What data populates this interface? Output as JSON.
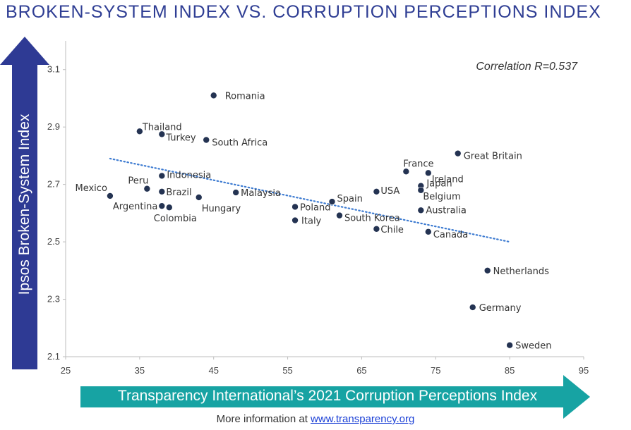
{
  "title": "BROKEN-SYSTEM INDEX VS. CORRUPTION PERCEPTIONS INDEX",
  "footer": {
    "prefix": "More information at ",
    "link_text": "www.transparency.org"
  },
  "colors": {
    "title": "#2f3e94",
    "y_arrow": "#2e3a94",
    "x_arrow": "#17a3a3",
    "point": "#243352",
    "trendline": "#3d7bd1"
  },
  "chart_data": {
    "type": "scatter",
    "title": "BROKEN-SYSTEM INDEX VS. CORRUPTION PERCEPTIONS INDEX",
    "xlabel": "Transparency International’s 2021 Corruption Perceptions Index",
    "ylabel": "Ipsos Broken-System Index",
    "xlim": [
      25,
      95
    ],
    "ylim": [
      2.1,
      3.2
    ],
    "x_ticks": [
      "25",
      "35",
      "45",
      "55",
      "65",
      "75",
      "85",
      "95"
    ],
    "y_ticks": [
      "2.1",
      "2.3",
      "2.5",
      "2.7",
      "2.9",
      "3.1"
    ],
    "grid": false,
    "annotation": "Correlation R=0.537",
    "trendline": {
      "style": "dotted",
      "x": [
        31,
        85
      ],
      "y": [
        2.79,
        2.5
      ]
    },
    "points": [
      {
        "label": "Romania",
        "x": 45,
        "y": 3.01
      },
      {
        "label": "Thailand",
        "x": 35,
        "y": 2.885
      },
      {
        "label": "Turkey",
        "x": 38,
        "y": 2.875
      },
      {
        "label": "South Africa",
        "x": 44,
        "y": 2.855
      },
      {
        "label": "Indonesia",
        "x": 38,
        "y": 2.73
      },
      {
        "label": "Mexico",
        "x": 31,
        "y": 2.66
      },
      {
        "label": "Peru",
        "x": 36,
        "y": 2.685
      },
      {
        "label": "Brazil",
        "x": 38,
        "y": 2.675
      },
      {
        "label": "Argentina",
        "x": 38,
        "y": 2.625
      },
      {
        "label": "Colombia",
        "x": 39,
        "y": 2.62
      },
      {
        "label": "Hungary",
        "x": 43,
        "y": 2.655
      },
      {
        "label": "Malaysia",
        "x": 48,
        "y": 2.672
      },
      {
        "label": "Poland",
        "x": 56,
        "y": 2.622
      },
      {
        "label": "Italy",
        "x": 56,
        "y": 2.575
      },
      {
        "label": "Spain",
        "x": 61,
        "y": 2.64
      },
      {
        "label": "South Korea",
        "x": 62,
        "y": 2.592
      },
      {
        "label": "USA",
        "x": 67,
        "y": 2.675
      },
      {
        "label": "Chile",
        "x": 67,
        "y": 2.545
      },
      {
        "label": "France",
        "x": 71,
        "y": 2.745
      },
      {
        "label": "Ireland",
        "x": 74,
        "y": 2.74
      },
      {
        "label": "Japan",
        "x": 73,
        "y": 2.695
      },
      {
        "label": "Belgium",
        "x": 73,
        "y": 2.68
      },
      {
        "label": "Australia",
        "x": 73,
        "y": 2.61
      },
      {
        "label": "Canada",
        "x": 74,
        "y": 2.535
      },
      {
        "label": "Great Britain",
        "x": 78,
        "y": 2.808
      },
      {
        "label": "Netherlands",
        "x": 82,
        "y": 2.4
      },
      {
        "label": "Germany",
        "x": 80,
        "y": 2.272
      },
      {
        "label": "Sweden",
        "x": 85,
        "y": 2.14
      }
    ]
  }
}
